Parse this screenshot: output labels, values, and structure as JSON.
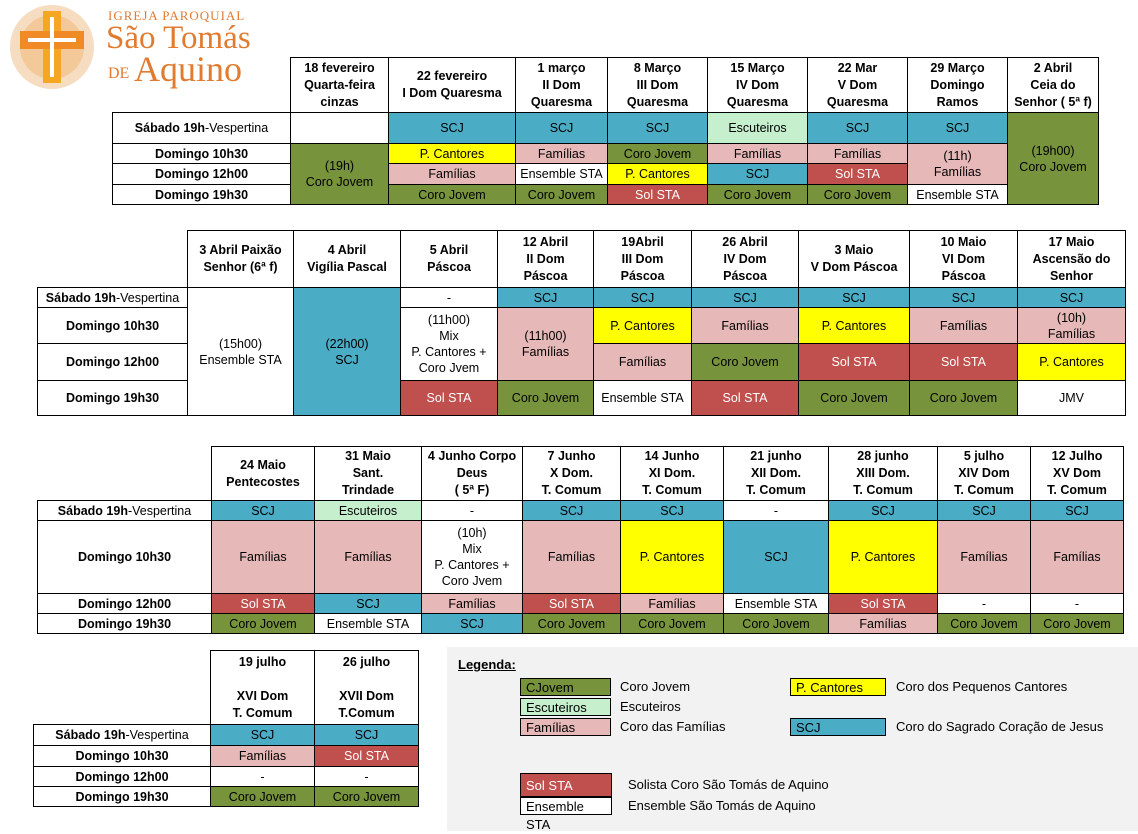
{
  "logo": {
    "line1": "IGREJA PAROQUIAL",
    "line2": "São Tomás",
    "line3a": "DE",
    "line3b": "Aquino"
  },
  "row_labels": [
    {
      "bold": "Sábado 19h",
      "normal": "-Vespertina"
    },
    {
      "bold": "Domingo 10h30",
      "normal": ""
    },
    {
      "bold": "Domingo 12h00",
      "normal": ""
    },
    {
      "bold": "Domingo 19h30",
      "normal": ""
    }
  ],
  "colors": {
    "g": "#77933c",
    "s": "#4bacc6",
    "p": "#e6b9b8",
    "y": "#ffff00",
    "r": "#c0504d",
    "e": "#c6efce",
    "w": "#ffffff"
  },
  "tables": [
    {
      "headers": [
        "18 fevereiro\nQuarta-feira\ncinzas",
        "22 fevereiro\nI Dom Quaresma",
        "1 março\nII Dom\nQuaresma",
        "8 Março\nIII Dom\nQuaresma",
        "15 Março\nIV Dom\nQuaresma",
        "22 Mar\nV Dom\nQuaresma",
        "29 Março\nDomingo\nRamos",
        "2 Abril\nCeia do\nSenhor ( 5ª f)"
      ],
      "rows": [
        [
          {
            "t": "",
            "c": "w"
          },
          {
            "t": "SCJ",
            "c": "s"
          },
          {
            "t": "SCJ",
            "c": "s"
          },
          {
            "t": "SCJ",
            "c": "s"
          },
          {
            "t": "Escuteiros",
            "c": "e"
          },
          {
            "t": "SCJ",
            "c": "s"
          },
          {
            "t": "SCJ",
            "c": "s"
          },
          {
            "t": "(19h00)\nCoro Jovem",
            "c": "g",
            "rs": 4
          }
        ],
        [
          {
            "t": "(19h)\nCoro Jovem",
            "c": "g",
            "rs": 3
          },
          {
            "t": "P. Cantores",
            "c": "y"
          },
          {
            "t": "Famílias",
            "c": "p"
          },
          {
            "t": "Coro Jovem",
            "c": "g"
          },
          {
            "t": "Famílias",
            "c": "p"
          },
          {
            "t": "Famílias",
            "c": "p"
          },
          {
            "t": "(11h)\nFamílias",
            "c": "p",
            "rs": 2
          }
        ],
        [
          {
            "t": "Famílias",
            "c": "p"
          },
          {
            "t": "Ensemble STA",
            "c": "w"
          },
          {
            "t": "P. Cantores",
            "c": "y"
          },
          {
            "t": "SCJ",
            "c": "s"
          },
          {
            "t": "Sol STA",
            "c": "r"
          }
        ],
        [
          {
            "t": "Coro Jovem",
            "c": "g"
          },
          {
            "t": "Coro Jovem",
            "c": "g"
          },
          {
            "t": "Sol STA",
            "c": "r"
          },
          {
            "t": "Coro Jovem",
            "c": "g"
          },
          {
            "t": "Coro Jovem",
            "c": "g"
          },
          {
            "t": "Ensemble STA",
            "c": "w"
          }
        ]
      ]
    },
    {
      "headers": [
        "3 Abril Paixão\nSenhor (6ª f)",
        "4 Abril\nVigília Pascal",
        "5 Abril\nPáscoa",
        "12 Abril\nII Dom\nPáscoa",
        "19Abril\nIII Dom\nPáscoa",
        "26 Abril\nIV Dom\nPáscoa",
        "3 Maio\nV Dom Páscoa",
        "10 Maio\nVI Dom\nPáscoa",
        "17 Maio\nAscensão do\nSenhor"
      ],
      "rows": [
        [
          {
            "t": "(15h00)\nEnsemble STA",
            "c": "w",
            "rs": 4
          },
          {
            "t": "(22h00)\nSCJ",
            "c": "s",
            "rs": 4
          },
          {
            "t": "-",
            "c": "w"
          },
          {
            "t": "SCJ",
            "c": "s"
          },
          {
            "t": "SCJ",
            "c": "s"
          },
          {
            "t": "SCJ",
            "c": "s"
          },
          {
            "t": "SCJ",
            "c": "s"
          },
          {
            "t": "SCJ",
            "c": "s"
          },
          {
            "t": "SCJ",
            "c": "s"
          }
        ],
        [
          {
            "t": "(11h00)\nMix\nP. Cantores +\nCoro Jvem",
            "c": "w",
            "rs": 2
          },
          {
            "t": "(11h00)\nFamílias",
            "c": "p",
            "rs": 2
          },
          {
            "t": "P. Cantores",
            "c": "y"
          },
          {
            "t": "Famílias",
            "c": "p"
          },
          {
            "t": "P. Cantores",
            "c": "y"
          },
          {
            "t": "Famílias",
            "c": "p"
          },
          {
            "t": "(10h)\nFamílias",
            "c": "p"
          }
        ],
        [
          {
            "t": "Famílias",
            "c": "p"
          },
          {
            "t": "Coro Jovem",
            "c": "g"
          },
          {
            "t": "Sol STA",
            "c": "r"
          },
          {
            "t": "Sol STA",
            "c": "r"
          },
          {
            "t": "P. Cantores",
            "c": "y"
          }
        ],
        [
          {
            "t": "Sol STA",
            "c": "r"
          },
          {
            "t": "Coro Jovem",
            "c": "g"
          },
          {
            "t": "Ensemble STA",
            "c": "w"
          },
          {
            "t": "Sol STA",
            "c": "r"
          },
          {
            "t": "Coro Jovem",
            "c": "g"
          },
          {
            "t": "Coro Jovem",
            "c": "g"
          },
          {
            "t": "JMV",
            "c": "w"
          }
        ]
      ]
    },
    {
      "headers": [
        "24 Maio\nPentecostes",
        "31 Maio\nSant.\nTrindade",
        "4 Junho Corpo\nDeus\n( 5ª F)",
        "7 Junho\nX Dom.\nT. Comum",
        "14 Junho\nXI Dom.\nT. Comum",
        "21 junho\nXII Dom.\nT. Comum",
        "28 junho\nXIII Dom.\nT. Comum",
        "5 julho\nXIV Dom\nT. Comum",
        "12 Julho\nXV Dom\nT. Comum"
      ],
      "rows": [
        [
          {
            "t": "SCJ",
            "c": "s"
          },
          {
            "t": "Escuteiros",
            "c": "e"
          },
          {
            "t": "-",
            "c": "w"
          },
          {
            "t": "SCJ",
            "c": "s"
          },
          {
            "t": "SCJ",
            "c": "s"
          },
          {
            "t": "-",
            "c": "w"
          },
          {
            "t": "SCJ",
            "c": "s"
          },
          {
            "t": "SCJ",
            "c": "s"
          },
          {
            "t": "SCJ",
            "c": "s"
          }
        ],
        [
          {
            "t": "Famílias",
            "c": "p"
          },
          {
            "t": "Famílias",
            "c": "p"
          },
          {
            "t": "(10h)\nMix\nP. Cantores +\nCoro Jvem",
            "c": "w"
          },
          {
            "t": "Famílias",
            "c": "p"
          },
          {
            "t": "P. Cantores",
            "c": "y"
          },
          {
            "t": "SCJ",
            "c": "s"
          },
          {
            "t": "P. Cantores",
            "c": "y"
          },
          {
            "t": "Famílias",
            "c": "p"
          },
          {
            "t": "Famílias",
            "c": "p"
          }
        ],
        [
          {
            "t": "Sol STA",
            "c": "r"
          },
          {
            "t": "SCJ",
            "c": "s"
          },
          {
            "t": "Famílias",
            "c": "p"
          },
          {
            "t": "Sol STA",
            "c": "r"
          },
          {
            "t": "Famílias",
            "c": "p"
          },
          {
            "t": "Ensemble STA",
            "c": "w"
          },
          {
            "t": "Sol STA",
            "c": "r"
          },
          {
            "t": "-",
            "c": "w"
          },
          {
            "t": "-",
            "c": "w"
          }
        ],
        [
          {
            "t": "Coro Jovem",
            "c": "g"
          },
          {
            "t": "Ensemble STA",
            "c": "w"
          },
          {
            "t": "SCJ",
            "c": "s"
          },
          {
            "t": "Coro Jovem",
            "c": "g"
          },
          {
            "t": "Coro Jovem",
            "c": "g"
          },
          {
            "t": "Coro Jovem",
            "c": "g"
          },
          {
            "t": "Famílias",
            "c": "p"
          },
          {
            "t": "Coro Jovem",
            "c": "g"
          },
          {
            "t": "Coro Jovem",
            "c": "g"
          }
        ]
      ]
    },
    {
      "headers": [
        "19 julho\n\nXVI Dom\nT. Comum",
        "26 julho\n\nXVII Dom\nT.Comum"
      ],
      "rows": [
        [
          {
            "t": "SCJ",
            "c": "s"
          },
          {
            "t": "SCJ",
            "c": "s"
          }
        ],
        [
          {
            "t": "Famílias",
            "c": "p"
          },
          {
            "t": "Sol STA",
            "c": "r"
          }
        ],
        [
          {
            "t": "-",
            "c": "w"
          },
          {
            "t": "-",
            "c": "w"
          }
        ],
        [
          {
            "t": "Coro Jovem",
            "c": "g"
          },
          {
            "t": "Coro Jovem",
            "c": "g"
          }
        ]
      ]
    }
  ],
  "legend": {
    "title": "Legenda:",
    "items": [
      {
        "swatch": "CJovem",
        "c": "g",
        "label": "Coro Jovem"
      },
      {
        "swatch": "Escuteiros",
        "c": "e",
        "label": "Escuteiros"
      },
      {
        "swatch": "Famílias",
        "c": "p",
        "label": "Coro das Famílias"
      },
      {
        "swatch": "P. Cantores",
        "c": "y",
        "label": "Coro dos Pequenos Cantores"
      },
      {
        "swatch": "SCJ",
        "c": "s",
        "label": "Coro do Sagrado Coração de Jesus"
      },
      {
        "swatch": "Sol STA",
        "c": "r",
        "label": "Solista Coro São Tomás de Aquino"
      },
      {
        "swatch": "Ensemble STA",
        "c": "w",
        "label": "Ensemble São Tomás de Aquino"
      }
    ]
  }
}
